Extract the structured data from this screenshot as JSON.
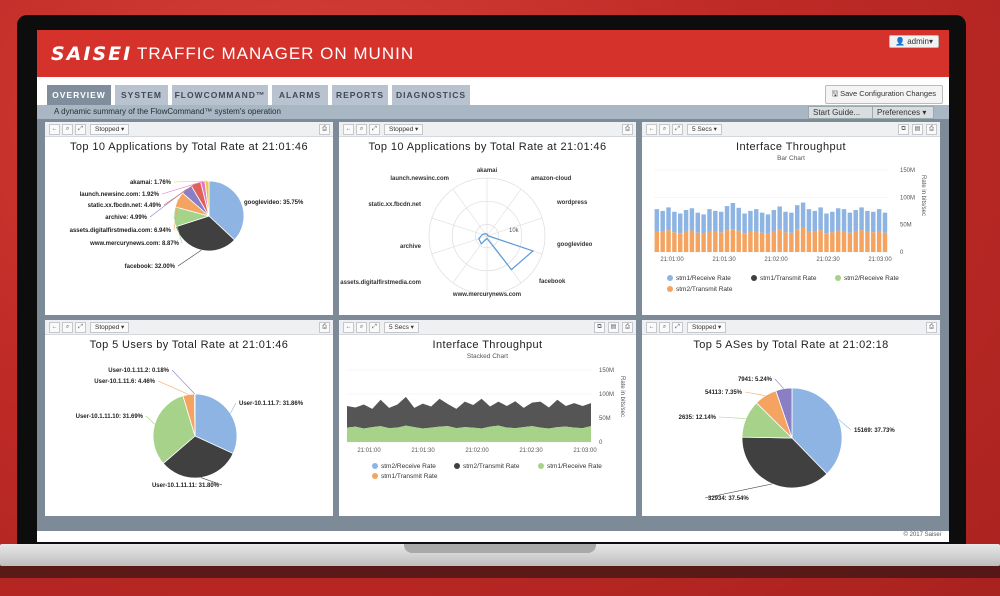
{
  "app": {
    "logo": "SAISEI",
    "title": "TRAFFIC MANAGER ON MUNIN",
    "user": "admin▾"
  },
  "tabs": [
    {
      "label": "OVERVIEW",
      "active": true
    },
    {
      "label": "SYSTEM",
      "active": false
    },
    {
      "label": "FLOWCOMMAND™",
      "active": false
    },
    {
      "label": "ALARMS",
      "active": false
    },
    {
      "label": "REPORTS",
      "active": false
    },
    {
      "label": "DIAGNOSTICS",
      "active": false
    }
  ],
  "toolbar": {
    "save_label": "Save Configuration Changes",
    "subtitle": "A dynamic summary of the FlowCommand™ system's operation",
    "start_guide": "Start Guide...",
    "preferences": "Preferences ▾"
  },
  "panels": {
    "p1": {
      "dd": "Stopped ▾",
      "title": "Top 10 Applications by Total Rate at 21:01:46"
    },
    "p2": {
      "dd": "Stopped ▾",
      "title": "Top 10 Applications by Total Rate at 21:01:46"
    },
    "p3": {
      "dd": "5 Secs ▾",
      "title": "Interface Throughput",
      "subtitle": "Bar Chart"
    },
    "p4": {
      "dd": "Stopped ▾",
      "title": "Top 5 Users by Total Rate at 21:01:46"
    },
    "p5": {
      "dd": "5 Secs ▾",
      "title": "Interface Throughput",
      "subtitle": "Stacked Chart"
    },
    "p6": {
      "dd": "Stopped ▾",
      "title": "Top 5 ASes by Total Rate at 21:02:18"
    }
  },
  "footer": {
    "copyright": "© 2017 Saisei"
  },
  "colors": {
    "blue": "#8db4e2",
    "dark": "#404040",
    "green": "#a6d389",
    "orange": "#f4a460",
    "purple": "#8a7fc4",
    "red": "#e0605a",
    "pink": "#e377c2",
    "yellow": "#e8c84a"
  },
  "chart_data": [
    {
      "type": "pie",
      "title": "Top 10 Applications by Total Rate at 21:01:46",
      "categories": [
        "googlevideo",
        "facebook",
        "www.mercurynews.com",
        "assets.digitalfirstmedia.com",
        "archive",
        "static.xx.fbcdn.net",
        "launch.newsinc.com",
        "akamai"
      ],
      "values": [
        35.75,
        32.0,
        8.87,
        6.94,
        4.99,
        4.49,
        1.92,
        1.76
      ],
      "labels": [
        "googlevideo: 35.75%",
        "facebook: 32.00%",
        "www.mercurynews.com: 8.87%",
        "assets.digitalfirstmedia.com: 6.94%",
        "archive: 4.99%",
        "static.xx.fbcdn.net: 4.49%",
        "launch.newsinc.com: 1.92%",
        "akamai: 1.76%"
      ]
    },
    {
      "type": "radar",
      "title": "Top 10 Applications by Total Rate at 21:01:46",
      "categories": [
        "akamai",
        "amazon-cloud",
        "wordpress",
        "googlevideo",
        "facebook",
        "www.mercurynews.com",
        "assets.digitalfirstmedia.com",
        "archive",
        "static.xx.fbcdn.net",
        "launch.newsinc.com"
      ],
      "values": [
        0.4,
        0.2,
        0.2,
        10.0,
        8.6,
        0.5,
        2.0,
        1.8,
        1.0,
        0.6
      ],
      "gridlabel": "10k"
    },
    {
      "type": "bar",
      "title": "Interface Throughput",
      "subtitle": "Bar Chart",
      "x_ticks": [
        "21:01:00",
        "21:01:30",
        "21:02:00",
        "21:02:30",
        "21:03:00"
      ],
      "y_ticks": [
        "0",
        "50M",
        "100M",
        "150M"
      ],
      "ylabel": "Rate in bits/sec",
      "ylim": [
        0,
        150
      ],
      "series": [
        {
          "name": "stm1/Receive Rate",
          "values": [
            50,
            48,
            52,
            47,
            45,
            49,
            51,
            46,
            44,
            50,
            48,
            47,
            55,
            60,
            52,
            45,
            48,
            50,
            46,
            44,
            49,
            53,
            47,
            46,
            55,
            58,
            50,
            48,
            52,
            45,
            47,
            51,
            50,
            46,
            49,
            52,
            48,
            47,
            50,
            46
          ]
        },
        {
          "name": "stm2/Transmit Rate",
          "values": [
            48,
            46,
            50,
            45,
            43,
            47,
            49,
            44,
            42,
            48,
            46,
            45,
            50,
            52,
            49,
            43,
            46,
            48,
            44,
            42,
            47,
            51,
            45,
            44,
            52,
            55,
            48,
            46,
            50,
            43,
            45,
            49,
            48,
            44,
            47,
            50,
            46,
            45,
            48,
            44
          ]
        }
      ],
      "legend": [
        "stm1/Receive Rate",
        "stm1/Transmit Rate",
        "stm2/Receive Rate",
        "stm2/Transmit Rate"
      ]
    },
    {
      "type": "pie",
      "title": "Top 5 Users by Total Rate at 21:01:46",
      "categories": [
        "User-10.1.11.7",
        "User-10.1.11.11",
        "User-10.1.11.10",
        "User-10.1.11.6",
        "User-10.1.11.2"
      ],
      "values": [
        31.86,
        31.8,
        31.69,
        4.46,
        0.18
      ],
      "labels": [
        "User-10.1.11.7: 31.86%",
        "User-10.1.11.11: 31.80%",
        "User-10.1.11.10: 31.69%",
        "User-10.1.11.6: 4.46%",
        "User-10.1.11.2: 0.18%"
      ]
    },
    {
      "type": "area",
      "title": "Interface Throughput",
      "subtitle": "Stacked Chart",
      "x_ticks": [
        "21:01:00",
        "21:01:30",
        "21:02:00",
        "21:02:30",
        "21:03:00"
      ],
      "y_ticks": [
        "0",
        "50M",
        "100M",
        "150M"
      ],
      "ylabel": "Rate in bits/sec",
      "ylim": [
        0,
        150
      ],
      "series": [
        {
          "name": "stm1/Receive Rate",
          "values": [
            30,
            32,
            28,
            31,
            33,
            29,
            30,
            34,
            31,
            28,
            30,
            32,
            33,
            29,
            31,
            30,
            28,
            32,
            34,
            30,
            29,
            31,
            33,
            30,
            28,
            31,
            32,
            30,
            29,
            33
          ]
        },
        {
          "name": "stm2/Transmit Rate",
          "values": [
            45,
            40,
            50,
            38,
            55,
            42,
            48,
            60,
            40,
            52,
            44,
            58,
            46,
            40,
            53,
            47,
            62,
            42,
            50,
            45,
            56,
            40,
            49,
            54,
            44,
            57,
            43,
            51,
            46,
            48
          ]
        }
      ],
      "legend": [
        "stm2/Receive Rate",
        "stm2/Transmit Rate",
        "stm1/Receive Rate",
        "stm1/Transmit Rate"
      ]
    },
    {
      "type": "pie",
      "title": "Top 5 ASes by Total Rate at 21:02:18",
      "categories": [
        "15169",
        "32934",
        "2635",
        "54113",
        "7941"
      ],
      "values": [
        37.73,
        37.54,
        12.14,
        7.35,
        5.24
      ],
      "labels": [
        "15169: 37.73%",
        "32934: 37.54%",
        "2635: 12.14%",
        "54113: 7.35%",
        "7941: 5.24%"
      ]
    }
  ]
}
